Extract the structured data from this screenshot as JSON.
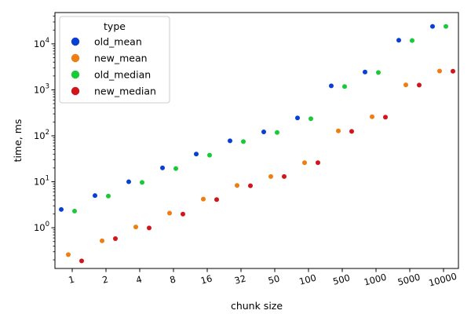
{
  "chart_data": {
    "type": "scatter",
    "xlabel": "chunk size",
    "ylabel": "time, ms",
    "yscale": "log",
    "ylim": [
      0.13,
      48000
    ],
    "grid": false,
    "categories": [
      "1",
      "2",
      "4",
      "8",
      "16",
      "32",
      "50",
      "100",
      "500",
      "1000",
      "5000",
      "10000"
    ],
    "y_ticks": [
      {
        "value": 1,
        "label": "10^0"
      },
      {
        "value": 10,
        "label": "10^1"
      },
      {
        "value": 100,
        "label": "10^2"
      },
      {
        "value": 1000,
        "label": "10^3"
      },
      {
        "value": 10000,
        "label": "10^4"
      }
    ],
    "legend": {
      "title": "type",
      "placement": "top-left"
    },
    "series": [
      {
        "name": "old_mean",
        "color": "#0a3fd6",
        "values": [
          2.5,
          5.0,
          10.0,
          20.0,
          40.0,
          78.0,
          122.0,
          245.0,
          1220.0,
          2440.0,
          12000.0,
          24000.0
        ]
      },
      {
        "name": "new_mean",
        "color": "#f07d11",
        "values": [
          0.26,
          0.52,
          1.04,
          2.08,
          4.2,
          8.3,
          13.0,
          26.0,
          128.0,
          260.0,
          1280.0,
          2560.0
        ]
      },
      {
        "name": "old_median",
        "color": "#1ac938",
        "values": [
          2.3,
          4.9,
          9.7,
          19.4,
          38.0,
          75.0,
          118.0,
          235.0,
          1180.0,
          2380.0,
          11800.0,
          24000.0
        ]
      },
      {
        "name": "new_median",
        "color": "#d2151a",
        "values": [
          0.19,
          0.58,
          0.99,
          1.98,
          4.1,
          8.2,
          13.0,
          26.0,
          125.0,
          255.0,
          1270.0,
          2540.0
        ]
      }
    ]
  }
}
